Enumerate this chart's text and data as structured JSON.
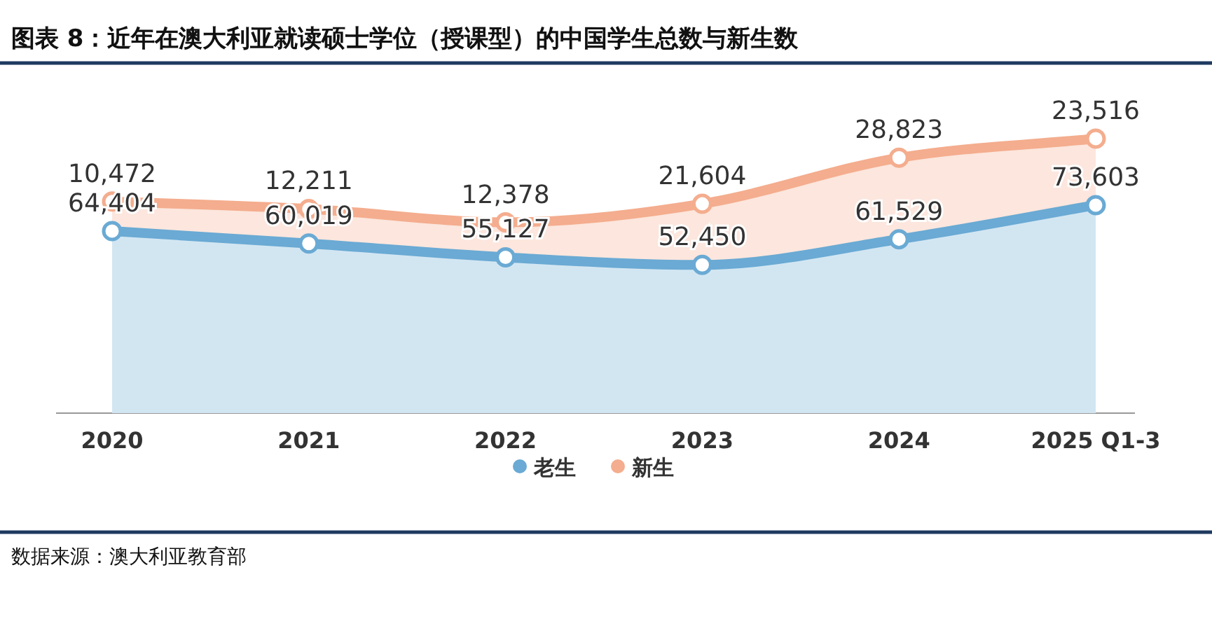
{
  "chart_data": {
    "type": "area",
    "stacked": true,
    "title": "图表 8：近年在澳大利亚就读硕士学位（授课型）的中国学生总数与新生数",
    "categories": [
      "2020",
      "2021",
      "2022",
      "2023",
      "2024",
      "2025 Q1-3"
    ],
    "series": [
      {
        "name": "老生",
        "color": "#6aaad4",
        "values": [
          64404,
          60019,
          55127,
          52450,
          61529,
          73603
        ],
        "value_labels": [
          "64,404",
          "60,019",
          "55,127",
          "52,450",
          "61,529",
          "73,603"
        ]
      },
      {
        "name": "新生",
        "color": "#f4ad8e",
        "values": [
          10472,
          12211,
          12378,
          21604,
          28823,
          23516
        ],
        "value_labels": [
          "10,472",
          "12,211",
          "12,378",
          "21,604",
          "28,823",
          "23,516"
        ]
      }
    ],
    "tick_labels": "x",
    "legend": "bottom",
    "marker": "circle",
    "annotations": [
      "数据来源：澳大利亚教育部"
    ]
  }
}
